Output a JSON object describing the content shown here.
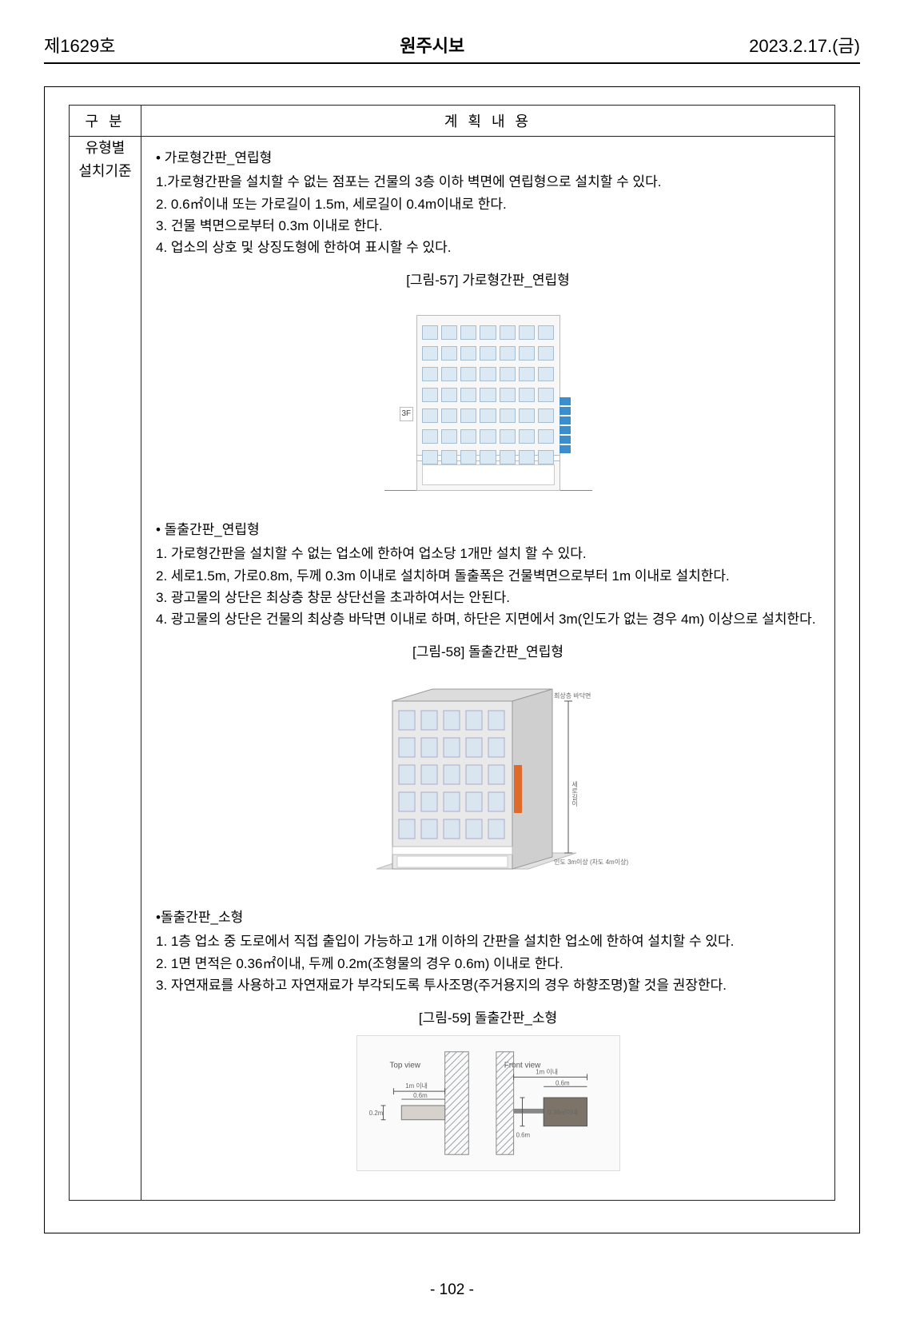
{
  "header": {
    "issue": "제1629호",
    "title": "원주시보",
    "date": "2023.2.17.(금)"
  },
  "table": {
    "th_left": "구 분",
    "th_right": "계 획 내 용",
    "row_label_line1": "유형별",
    "row_label_line2": "설치기준"
  },
  "section1": {
    "title": "• 가로형간판_연립형",
    "items": [
      "1.가로형간판을 설치할 수 없는 점포는 건물의 3층 이하 벽면에 연립형으로 설치할 수 있다.",
      "2. 0.6㎡이내 또는 가로길이 1.5m, 세로길이 0.4m이내로 한다.",
      "3. 건물 벽면으로부터 0.3m 이내로 한다.",
      "4. 업소의 상호 및 상징도형에 한하여 표시할 수 있다."
    ],
    "fig_caption": "[그림-57] 가로형간판_연립형",
    "fig": {
      "floors": 7,
      "windows_per_floor": 7,
      "wall_color": "#f7f7f7",
      "window_color": "#dbe9f4",
      "sign_color": "#3c8dcb",
      "label_3f": "3F"
    }
  },
  "section2": {
    "title": "• 돌출간판_연립형",
    "items": [
      "1. 가로형간판을 설치할 수 없는 업소에 한하여 업소당 1개만 설치 할 수 있다.",
      "2. 세로1.5m, 가로0.8m, 두께 0.3m 이내로 설치하며 돌출폭은 건물벽면으로부터 1m 이내로 설치한다.",
      "3. 광고물의 상단은 최상층 창문 상단선을 초과하여서는 안된다.",
      "4. 광고물의 상단은 건물의 최상층 바닥면 이내로 하며, 하단은 지면에서 3m(인도가 없는 경우 4m) 이상으로 설치한다."
    ],
    "fig_caption": "[그림-58] 돌출간판_연립형",
    "fig": {
      "top_label": "최상층 바닥면",
      "side_label": "세로길이",
      "bottom_label": "인도 3m이상 (차도 4m이상)",
      "wall_light": "#e9e9e9",
      "wall_shadow": "#cfcfcf",
      "window_color": "#d9e6ef",
      "accent_color": "#e06a2b"
    }
  },
  "section3": {
    "title": "•돌출간판_소형",
    "items": [
      "1. 1층 업소 중 도로에서 직접 출입이 가능하고 1개 이하의 간판을 설치한 업소에 한하여 설치할 수 있다.",
      "2. 1면 면적은 0.36㎡이내, 두께 0.2m(조형물의 경우 0.6m) 이내로 한다.",
      "3. 자연재료를 사용하고 자연재료가 부각되도록 투사조명(주거용지의 경우 하향조명)할 것을 권장한다."
    ],
    "fig_caption": "[그림-59] 돌출간판_소형",
    "fig": {
      "top_view_label": "Top view",
      "front_view_label": "Front view",
      "dim_1m": "1m 이내",
      "dim_06m": "0.6m",
      "dim_02m": "0.2m",
      "dim_area": "0.36㎡이내",
      "wall_hatch_color": "#9aa0a6",
      "sign_fill": "#7d7368",
      "sign_fill_light": "#d6d1cb"
    }
  },
  "page_number": "- 102 -"
}
